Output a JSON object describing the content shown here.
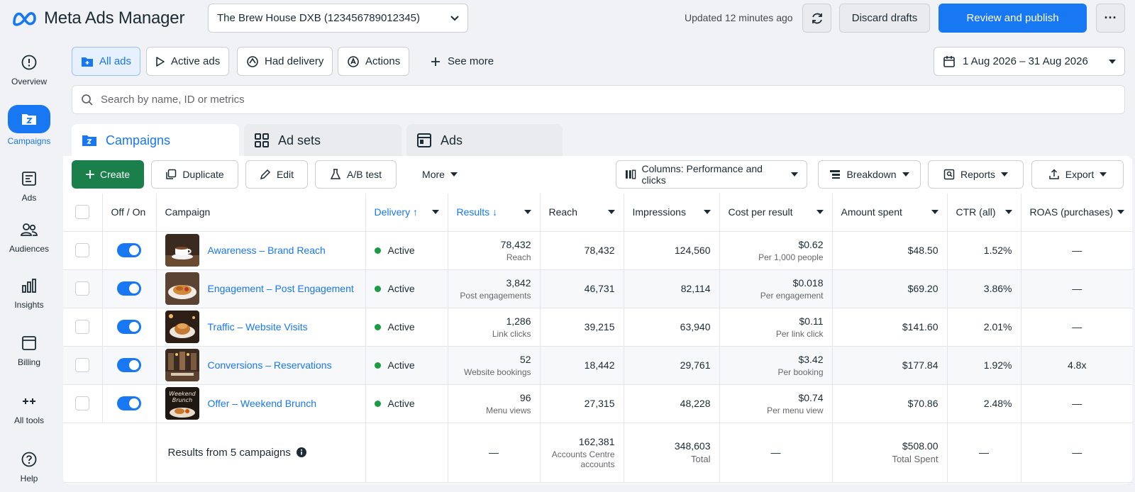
{
  "app": {
    "title": "Meta Ads Manager"
  },
  "header": {
    "account": "The Brew House DXB (123456789012345)",
    "updated": "Updated 12 minutes ago",
    "discard_label": "Discard drafts",
    "publish_label": "Review and publish",
    "more_label": "···"
  },
  "sidebar": {
    "items": [
      {
        "label": "Overview",
        "icon": "info-circle-icon"
      },
      {
        "label": "Campaigns",
        "icon": "campaigns-folder-icon",
        "active": true
      },
      {
        "label": "Ads",
        "icon": "ads-icon"
      },
      {
        "label": "Audiences",
        "icon": "people-icon"
      },
      {
        "label": "Insights",
        "icon": "bar-chart-icon"
      },
      {
        "label": "Billing",
        "icon": "billing-icon"
      },
      {
        "label": "All tools",
        "icon": "sparkle-icon"
      },
      {
        "label": "Help",
        "icon": "help-icon"
      }
    ]
  },
  "filters": {
    "all_ads": "All ads",
    "active_ads": "Active ads",
    "had_delivery": "Had delivery",
    "actions": "Actions",
    "see_more": "See more",
    "date_range": "1 Aug 2026 – 31 Aug 2026"
  },
  "search": {
    "placeholder": "Search by name, ID or metrics"
  },
  "tabs": {
    "campaigns": "Campaigns",
    "ad_sets": "Ad sets",
    "ads": "Ads"
  },
  "toolbar": {
    "create": "Create",
    "duplicate": "Duplicate",
    "edit": "Edit",
    "ab_test": "A/B test",
    "more": "More",
    "columns": "Columns: Performance and clicks",
    "breakdown": "Breakdown",
    "reports": "Reports",
    "export": "Export"
  },
  "table": {
    "headers": {
      "off_on": "Off / On",
      "campaign": "Campaign",
      "delivery": "Delivery ↑",
      "results": "Results ↓",
      "reach": "Reach",
      "impressions": "Impressions",
      "cost_per_result": "Cost per result",
      "amount_spent": "Amount spent",
      "ctr": "CTR (all)",
      "roas": "ROAS (purchases)"
    },
    "rows": [
      {
        "name": "Awareness – Brand Reach",
        "delivery": "Active",
        "results": "78,432",
        "results_sub": "Reach",
        "reach": "78,432",
        "impressions": "124,560",
        "cpr": "$0.62",
        "cpr_sub": "Per 1,000 people",
        "spent": "$48.50",
        "ctr": "1.52%",
        "roas": "—"
      },
      {
        "name": "Engagement – Post Engagement",
        "delivery": "Active",
        "results": "3,842",
        "results_sub": "Post engagements",
        "reach": "46,731",
        "impressions": "82,114",
        "cpr": "$0.018",
        "cpr_sub": "Per engagement",
        "spent": "$69.20",
        "ctr": "3.86%",
        "roas": "—"
      },
      {
        "name": "Traffic – Website Visits",
        "delivery": "Active",
        "results": "1,286",
        "results_sub": "Link clicks",
        "reach": "39,215",
        "impressions": "63,940",
        "cpr": "$0.11",
        "cpr_sub": "Per link click",
        "spent": "$141.60",
        "ctr": "2.01%",
        "roas": "—"
      },
      {
        "name": "Conversions – Reservations",
        "delivery": "Active",
        "results": "52",
        "results_sub": "Website bookings",
        "reach": "18,442",
        "impressions": "29,761",
        "cpr": "$3.42",
        "cpr_sub": "Per booking",
        "spent": "$177.84",
        "ctr": "1.92%",
        "roas": "4.8x"
      },
      {
        "name": "Offer – Weekend Brunch",
        "delivery": "Active",
        "results": "96",
        "results_sub": "Menu views",
        "reach": "27,315",
        "impressions": "48,228",
        "cpr": "$0.74",
        "cpr_sub": "Per menu view",
        "spent": "$70.86",
        "ctr": "2.48%",
        "roas": "—",
        "thumb_text_1": "Weekend",
        "thumb_text_2": "Brunch"
      }
    ],
    "summary": {
      "label": "Results from 5 campaigns",
      "results": "—",
      "reach": "162,381",
      "reach_sub": "Accounts Centre accounts",
      "impressions": "348,603",
      "impressions_sub": "Total",
      "cpr": "—",
      "spent": "$508.00",
      "spent_sub": "Total Spent",
      "ctr": "—",
      "roas": "—"
    }
  },
  "colors": {
    "accent": "#1877f2",
    "create": "#1a7f4b",
    "active_dot": "#1a9c44"
  }
}
